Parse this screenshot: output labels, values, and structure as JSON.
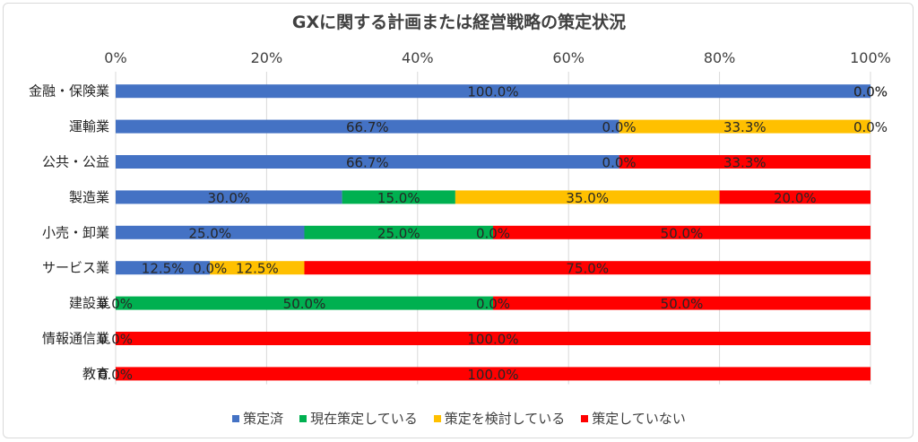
{
  "chart_data": {
    "type": "bar",
    "orientation": "horizontal",
    "stacked": true,
    "percent": true,
    "title": "GXに関する計画または経営戦略の策定状況",
    "x_ticks": [
      "0%",
      "20%",
      "40%",
      "60%",
      "80%",
      "100%"
    ],
    "xlim": [
      0,
      100
    ],
    "grid": true,
    "legend_position": "bottom",
    "categories": [
      "金融・保険業",
      "運輸業",
      "公共・公益",
      "製造業",
      "小売・卸業",
      "サービス業",
      "建設業",
      "情報通信業",
      "教育"
    ],
    "series": [
      {
        "name": "策定済",
        "color": "#4472C4",
        "values": [
          100.0,
          66.7,
          66.7,
          30.0,
          25.0,
          12.5,
          0.0,
          0.0,
          0.0
        ],
        "labels": [
          "100.0%",
          "66.7%",
          "66.7%",
          "30.0%",
          "25.0%",
          "12.5%",
          "0.0%",
          "0.0%",
          "0.0%"
        ]
      },
      {
        "name": "現在策定している",
        "color": "#00B050",
        "values": [
          0.0,
          0.0,
          0.0,
          15.0,
          25.0,
          0.0,
          50.0,
          0.0,
          0.0
        ],
        "labels": [
          "0.0%",
          "0.0%",
          "0.0%",
          "15.0%",
          "25.0%",
          "0.0%",
          "50.0%",
          "",
          ""
        ]
      },
      {
        "name": "策定を検討している",
        "color": "#FFC000",
        "values": [
          0.0,
          33.3,
          0.0,
          35.0,
          0.0,
          12.5,
          0.0,
          0.0,
          0.0
        ],
        "labels": [
          "",
          "33.3%",
          "",
          "35.0%",
          "0.0%",
          "12.5%",
          "0.0%",
          "",
          ""
        ]
      },
      {
        "name": "策定していない",
        "color": "#FF0000",
        "values": [
          0.0,
          0.0,
          33.3,
          20.0,
          50.0,
          75.0,
          50.0,
          100.0,
          100.0
        ],
        "labels": [
          "0.0%",
          "0.0%",
          "33.3%",
          "20.0%",
          "50.0%",
          "75.0%",
          "50.0%",
          "100.0%",
          "100.0%"
        ]
      }
    ]
  }
}
